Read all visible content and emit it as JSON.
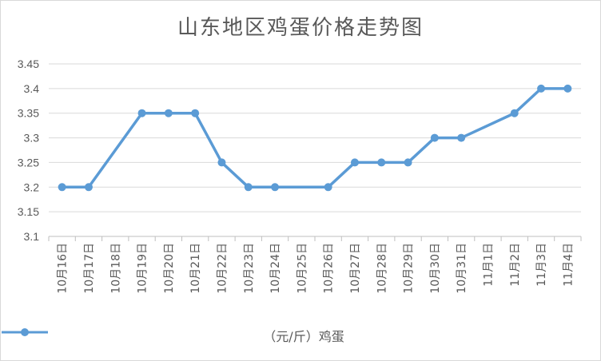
{
  "chart_data": {
    "type": "line",
    "title": "山东地区鸡蛋价格走势图",
    "categories": [
      "10月16日",
      "10月17日",
      "10月18日",
      "10月19日",
      "10月20日",
      "10月21日",
      "10月22日",
      "10月23日",
      "10月24日",
      "10月25日",
      "10月26日",
      "10月27日",
      "10月28日",
      "10月29日",
      "10月30日",
      "10月31日",
      "11月1日",
      "11月2日",
      "11月3日",
      "11月4日"
    ],
    "series": [
      {
        "name": "（元/斤）鸡蛋",
        "color": "#5b9bd5",
        "values": [
          3.2,
          3.2,
          null,
          3.35,
          3.35,
          3.35,
          3.25,
          3.2,
          3.2,
          null,
          3.2,
          3.25,
          3.25,
          3.25,
          3.3,
          3.3,
          null,
          3.35,
          3.4,
          3.4
        ]
      }
    ],
    "ylim": [
      3.1,
      3.45
    ],
    "yticks": [
      "3.1",
      "3.15",
      "3.2",
      "3.25",
      "3.3",
      "3.35",
      "3.4",
      "3.45"
    ],
    "grid": true,
    "legend_position": "bottom"
  }
}
